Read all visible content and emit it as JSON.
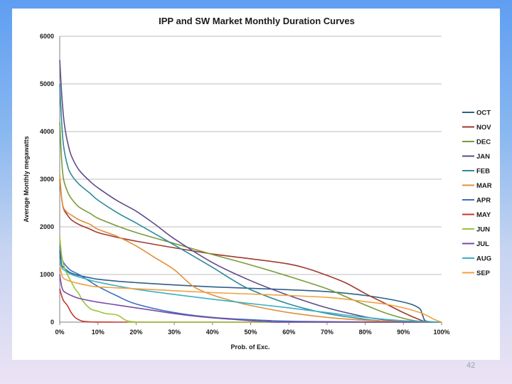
{
  "slide": {
    "page_number": "42"
  },
  "chart_data": {
    "type": "line",
    "title": "IPP and SW Market Monthly Duration Curves",
    "xlabel": "Prob. of Exc.",
    "ylabel": "Average Monthly megawatts",
    "xlim": [
      0,
      100
    ],
    "ylim": [
      0,
      6000
    ],
    "x_ticks": [
      0,
      10,
      20,
      30,
      40,
      50,
      60,
      70,
      80,
      90,
      100
    ],
    "x_tick_labels": [
      "0%",
      "10%",
      "20%",
      "30%",
      "40%",
      "50%",
      "60%",
      "70%",
      "80%",
      "90%",
      "100%"
    ],
    "y_ticks": [
      0,
      1000,
      2000,
      3000,
      4000,
      5000,
      6000
    ],
    "y_tick_labels": [
      "0",
      "1000",
      "2000",
      "3000",
      "4000",
      "5000",
      "6000"
    ],
    "grid": "horizontal",
    "legend_position": "right",
    "series": [
      {
        "name": "OCT",
        "color": "#2e5f8a",
        "x": [
          0,
          0.5,
          1,
          2,
          3,
          5,
          8,
          10,
          15,
          20,
          30,
          40,
          50,
          60,
          70,
          80,
          90,
          94,
          95,
          96,
          100
        ],
        "y": [
          1500,
          1200,
          1150,
          1080,
          1030,
          980,
          930,
          900,
          860,
          830,
          780,
          740,
          710,
          680,
          640,
          560,
          420,
          300,
          150,
          20,
          0
        ]
      },
      {
        "name": "NOV",
        "color": "#a03a2e",
        "x": [
          0,
          0.5,
          1,
          2,
          3,
          5,
          8,
          10,
          15,
          20,
          30,
          40,
          50,
          60,
          65,
          70,
          75,
          80,
          85,
          90,
          94,
          96,
          100
        ],
        "y": [
          3000,
          2600,
          2380,
          2250,
          2150,
          2050,
          1950,
          1880,
          1780,
          1700,
          1560,
          1430,
          1330,
          1220,
          1120,
          980,
          820,
          600,
          400,
          200,
          60,
          10,
          0
        ]
      },
      {
        "name": "DEC",
        "color": "#7a9a3a",
        "x": [
          0,
          0.5,
          1,
          2,
          3,
          5,
          8,
          10,
          15,
          20,
          30,
          40,
          50,
          60,
          70,
          75,
          80,
          85,
          90,
          93,
          96,
          100
        ],
        "y": [
          4200,
          3400,
          3000,
          2750,
          2600,
          2420,
          2280,
          2180,
          2020,
          1880,
          1650,
          1420,
          1200,
          960,
          700,
          530,
          360,
          200,
          80,
          30,
          5,
          0
        ]
      },
      {
        "name": "JAN",
        "color": "#5e4a8a",
        "x": [
          0,
          0.5,
          1,
          1.5,
          2,
          3,
          5,
          8,
          10,
          15,
          20,
          25,
          30,
          40,
          50,
          60,
          70,
          80,
          85,
          90,
          95,
          100
        ],
        "y": [
          5500,
          4800,
          4300,
          4000,
          3800,
          3500,
          3200,
          2950,
          2820,
          2550,
          2330,
          2050,
          1750,
          1250,
          870,
          560,
          300,
          110,
          50,
          15,
          3,
          0
        ]
      },
      {
        "name": "FEB",
        "color": "#2e8a9a",
        "x": [
          0,
          0.5,
          1,
          2,
          3,
          5,
          8,
          10,
          15,
          20,
          25,
          30,
          40,
          45,
          50,
          60,
          70,
          80,
          85,
          90,
          95,
          100
        ],
        "y": [
          5000,
          4200,
          3700,
          3300,
          3100,
          2900,
          2700,
          2560,
          2300,
          2080,
          1850,
          1620,
          1150,
          900,
          680,
          380,
          180,
          60,
          20,
          5,
          1,
          0
        ]
      },
      {
        "name": "MAR",
        "color": "#e0903a",
        "x": [
          0,
          0.5,
          1,
          2,
          3,
          5,
          8,
          10,
          15,
          20,
          25,
          30,
          35,
          40,
          45,
          50,
          60,
          70,
          80,
          90,
          100
        ],
        "y": [
          3100,
          2600,
          2400,
          2300,
          2250,
          2150,
          2050,
          1950,
          1800,
          1600,
          1350,
          1100,
          750,
          570,
          450,
          350,
          200,
          100,
          40,
          10,
          0
        ]
      },
      {
        "name": "APR",
        "color": "#3a6fbf",
        "x": [
          0,
          0.5,
          1,
          2,
          3,
          5,
          8,
          10,
          15,
          20,
          30,
          40,
          50,
          60,
          70,
          80,
          90,
          100
        ],
        "y": [
          1600,
          1350,
          1250,
          1150,
          1080,
          1000,
          850,
          750,
          550,
          380,
          200,
          100,
          50,
          20,
          10,
          5,
          2,
          0
        ]
      },
      {
        "name": "MAY",
        "color": "#c0392b",
        "x": [
          0,
          0.5,
          1,
          2,
          3,
          4,
          5,
          6,
          8,
          10,
          15,
          20,
          100
        ],
        "y": [
          700,
          550,
          450,
          350,
          200,
          100,
          50,
          20,
          5,
          2,
          0,
          0,
          0
        ]
      },
      {
        "name": "JUN",
        "color": "#9ac43a",
        "x": [
          0,
          0.5,
          1,
          2,
          3,
          4,
          5,
          6,
          8,
          10,
          12,
          15,
          17,
          18,
          20,
          25,
          100
        ],
        "y": [
          1800,
          1400,
          1200,
          1000,
          850,
          700,
          600,
          450,
          280,
          230,
          180,
          150,
          50,
          20,
          5,
          0,
          0
        ]
      },
      {
        "name": "JUL",
        "color": "#7a4aa8",
        "x": [
          0,
          0.5,
          1,
          2,
          3,
          5,
          8,
          10,
          15,
          20,
          25,
          30,
          35,
          40,
          45,
          50,
          55,
          60,
          100
        ],
        "y": [
          1000,
          750,
          650,
          600,
          560,
          500,
          450,
          420,
          360,
          300,
          240,
          180,
          130,
          90,
          60,
          30,
          10,
          2,
          0
        ]
      },
      {
        "name": "AUG",
        "color": "#3ab0c8",
        "x": [
          0,
          0.5,
          1,
          2,
          3,
          5,
          8,
          10,
          15,
          20,
          30,
          40,
          50,
          60,
          70,
          80,
          90,
          100
        ],
        "y": [
          1300,
          1150,
          1100,
          1050,
          1000,
          950,
          880,
          840,
          760,
          690,
          580,
          480,
          390,
          300,
          200,
          100,
          30,
          0
        ]
      },
      {
        "name": "SEP",
        "color": "#f0a040",
        "x": [
          0,
          0.5,
          1,
          2,
          3,
          5,
          8,
          10,
          15,
          20,
          30,
          40,
          50,
          60,
          70,
          75,
          80,
          85,
          90,
          95,
          98,
          100
        ],
        "y": [
          1200,
          1000,
          920,
          880,
          850,
          810,
          760,
          740,
          720,
          700,
          660,
          620,
          590,
          560,
          520,
          480,
          430,
          380,
          300,
          180,
          60,
          0
        ]
      }
    ]
  }
}
